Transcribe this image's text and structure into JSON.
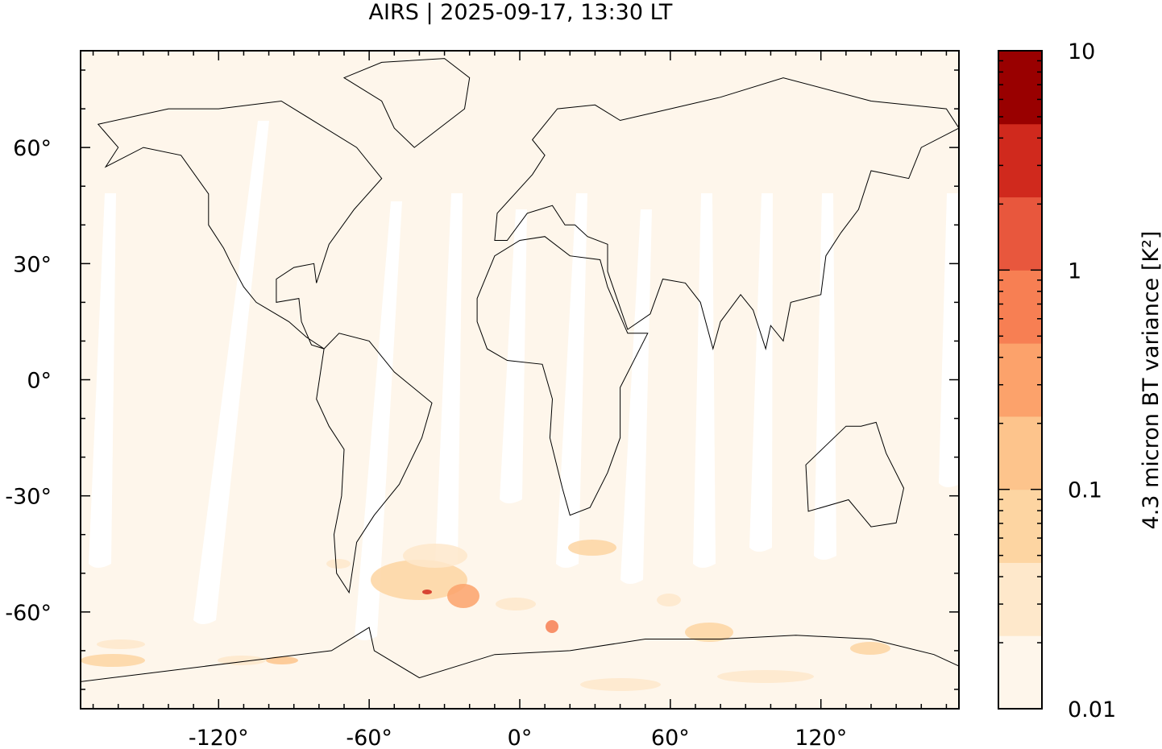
{
  "title": "AIRS | 2025-09-17, 13:30 LT",
  "map": {
    "projection": "equirectangular",
    "lon_range": [
      -175,
      175
    ],
    "lat_range": [
      -85,
      85
    ],
    "x_ticks": [
      {
        "value": -120,
        "label": "-120°"
      },
      {
        "value": -60,
        "label": "-60°"
      },
      {
        "value": 0,
        "label": "0°"
      },
      {
        "value": 60,
        "label": "60°"
      },
      {
        "value": 120,
        "label": "120°"
      }
    ],
    "y_ticks": [
      {
        "value": 60,
        "label": "60°"
      },
      {
        "value": 30,
        "label": "30°"
      },
      {
        "value": 0,
        "label": "0°"
      },
      {
        "value": -30,
        "label": "-30°"
      },
      {
        "value": -60,
        "label": "-60°"
      }
    ],
    "background_color": "#fef6eb",
    "no_data_color": "#ffffff",
    "coastline_color": "#000000"
  },
  "colorbar": {
    "label": "4.3 micron BT variance [K²]",
    "scale": "log",
    "range": [
      0.01,
      10
    ],
    "tick_labels": [
      {
        "value": 10,
        "label": "10"
      },
      {
        "value": 1,
        "label": "1"
      },
      {
        "value": 0.1,
        "label": "0.1"
      },
      {
        "value": 0.01,
        "label": "0.01"
      }
    ],
    "colors": [
      "#fef6eb",
      "#fee8cb",
      "#fdd5a2",
      "#fdc48c",
      "#fca26b",
      "#f77f53",
      "#e8573d",
      "#d0291d",
      "#990000"
    ]
  }
}
